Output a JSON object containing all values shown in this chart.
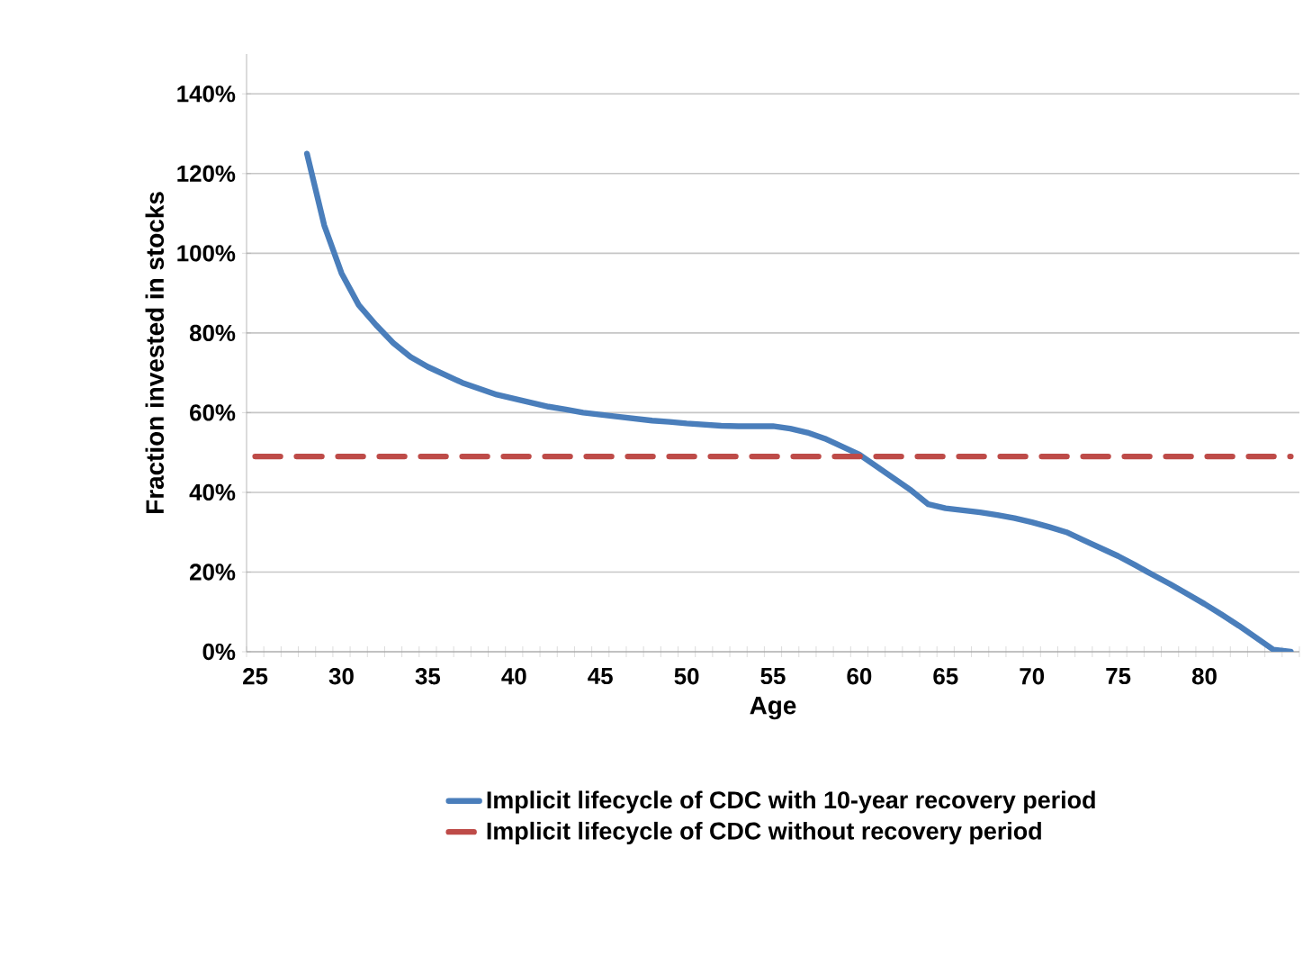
{
  "chart_data": {
    "type": "line",
    "xlabel": "Age",
    "ylabel": "Fraction invested in stocks",
    "categories": [
      "25",
      null,
      null,
      null,
      null,
      "30",
      null,
      null,
      null,
      null,
      "35",
      null,
      null,
      null,
      null,
      "40",
      null,
      null,
      null,
      null,
      "45",
      null,
      null,
      null,
      null,
      "50",
      null,
      null,
      null,
      null,
      "55",
      null,
      null,
      null,
      null,
      "60",
      null,
      null,
      null,
      null,
      "65",
      null,
      null,
      null,
      null,
      "70",
      null,
      null,
      null,
      null,
      "75",
      null,
      null,
      null,
      null,
      "80",
      null,
      null,
      null,
      null,
      null
    ],
    "series": [
      {
        "name": "Implicit lifecycle of CDC with 10-year recovery period",
        "color": "#4a7ebb",
        "line_style": "solid",
        "values": [
          null,
          null,
          null,
          125,
          107,
          95,
          87,
          82,
          77.5,
          74,
          71.5,
          69.5,
          67.5,
          66,
          64.5,
          63.5,
          62.5,
          61.5,
          60.8,
          60,
          59.5,
          59,
          58.5,
          58,
          57.7,
          57.3,
          57,
          56.7,
          56.6,
          56.6,
          56.6,
          56,
          55,
          53.5,
          51.5,
          49.5,
          46.5,
          43.5,
          40.5,
          37,
          36,
          35.5,
          35,
          34.3,
          33.5,
          32.5,
          31.3,
          30,
          28,
          26,
          24,
          21.7,
          19.3,
          17,
          14.5,
          12,
          9.3,
          6.5,
          3.5,
          0.5,
          0
        ]
      },
      {
        "name": "Implicit lifecycle of CDC without recovery period",
        "color": "#be4b48",
        "line_style": "dashed",
        "values": [
          49,
          49,
          49,
          49,
          49,
          49,
          49,
          49,
          49,
          49,
          49,
          49,
          49,
          49,
          49,
          49,
          49,
          49,
          49,
          49,
          49,
          49,
          49,
          49,
          49,
          49,
          49,
          49,
          49,
          49,
          49,
          49,
          49,
          49,
          49,
          49,
          49,
          49,
          49,
          49,
          49,
          49,
          49,
          49,
          49,
          49,
          49,
          49,
          49,
          49,
          49,
          49,
          49,
          49,
          49,
          49,
          49,
          49,
          49,
          49,
          49
        ]
      }
    ],
    "ylim": [
      0,
      150
    ],
    "yticks": [
      {
        "value": 0,
        "label": "0%"
      },
      {
        "value": 20,
        "label": "20%"
      },
      {
        "value": 40,
        "label": "40%"
      },
      {
        "value": 60,
        "label": "60%"
      },
      {
        "value": 80,
        "label": "80%"
      },
      {
        "value": 100,
        "label": "100%"
      },
      {
        "value": 120,
        "label": "120%"
      },
      {
        "value": 140,
        "label": "140%"
      }
    ],
    "grid": "y",
    "legend": "bottom",
    "marker": "none"
  }
}
